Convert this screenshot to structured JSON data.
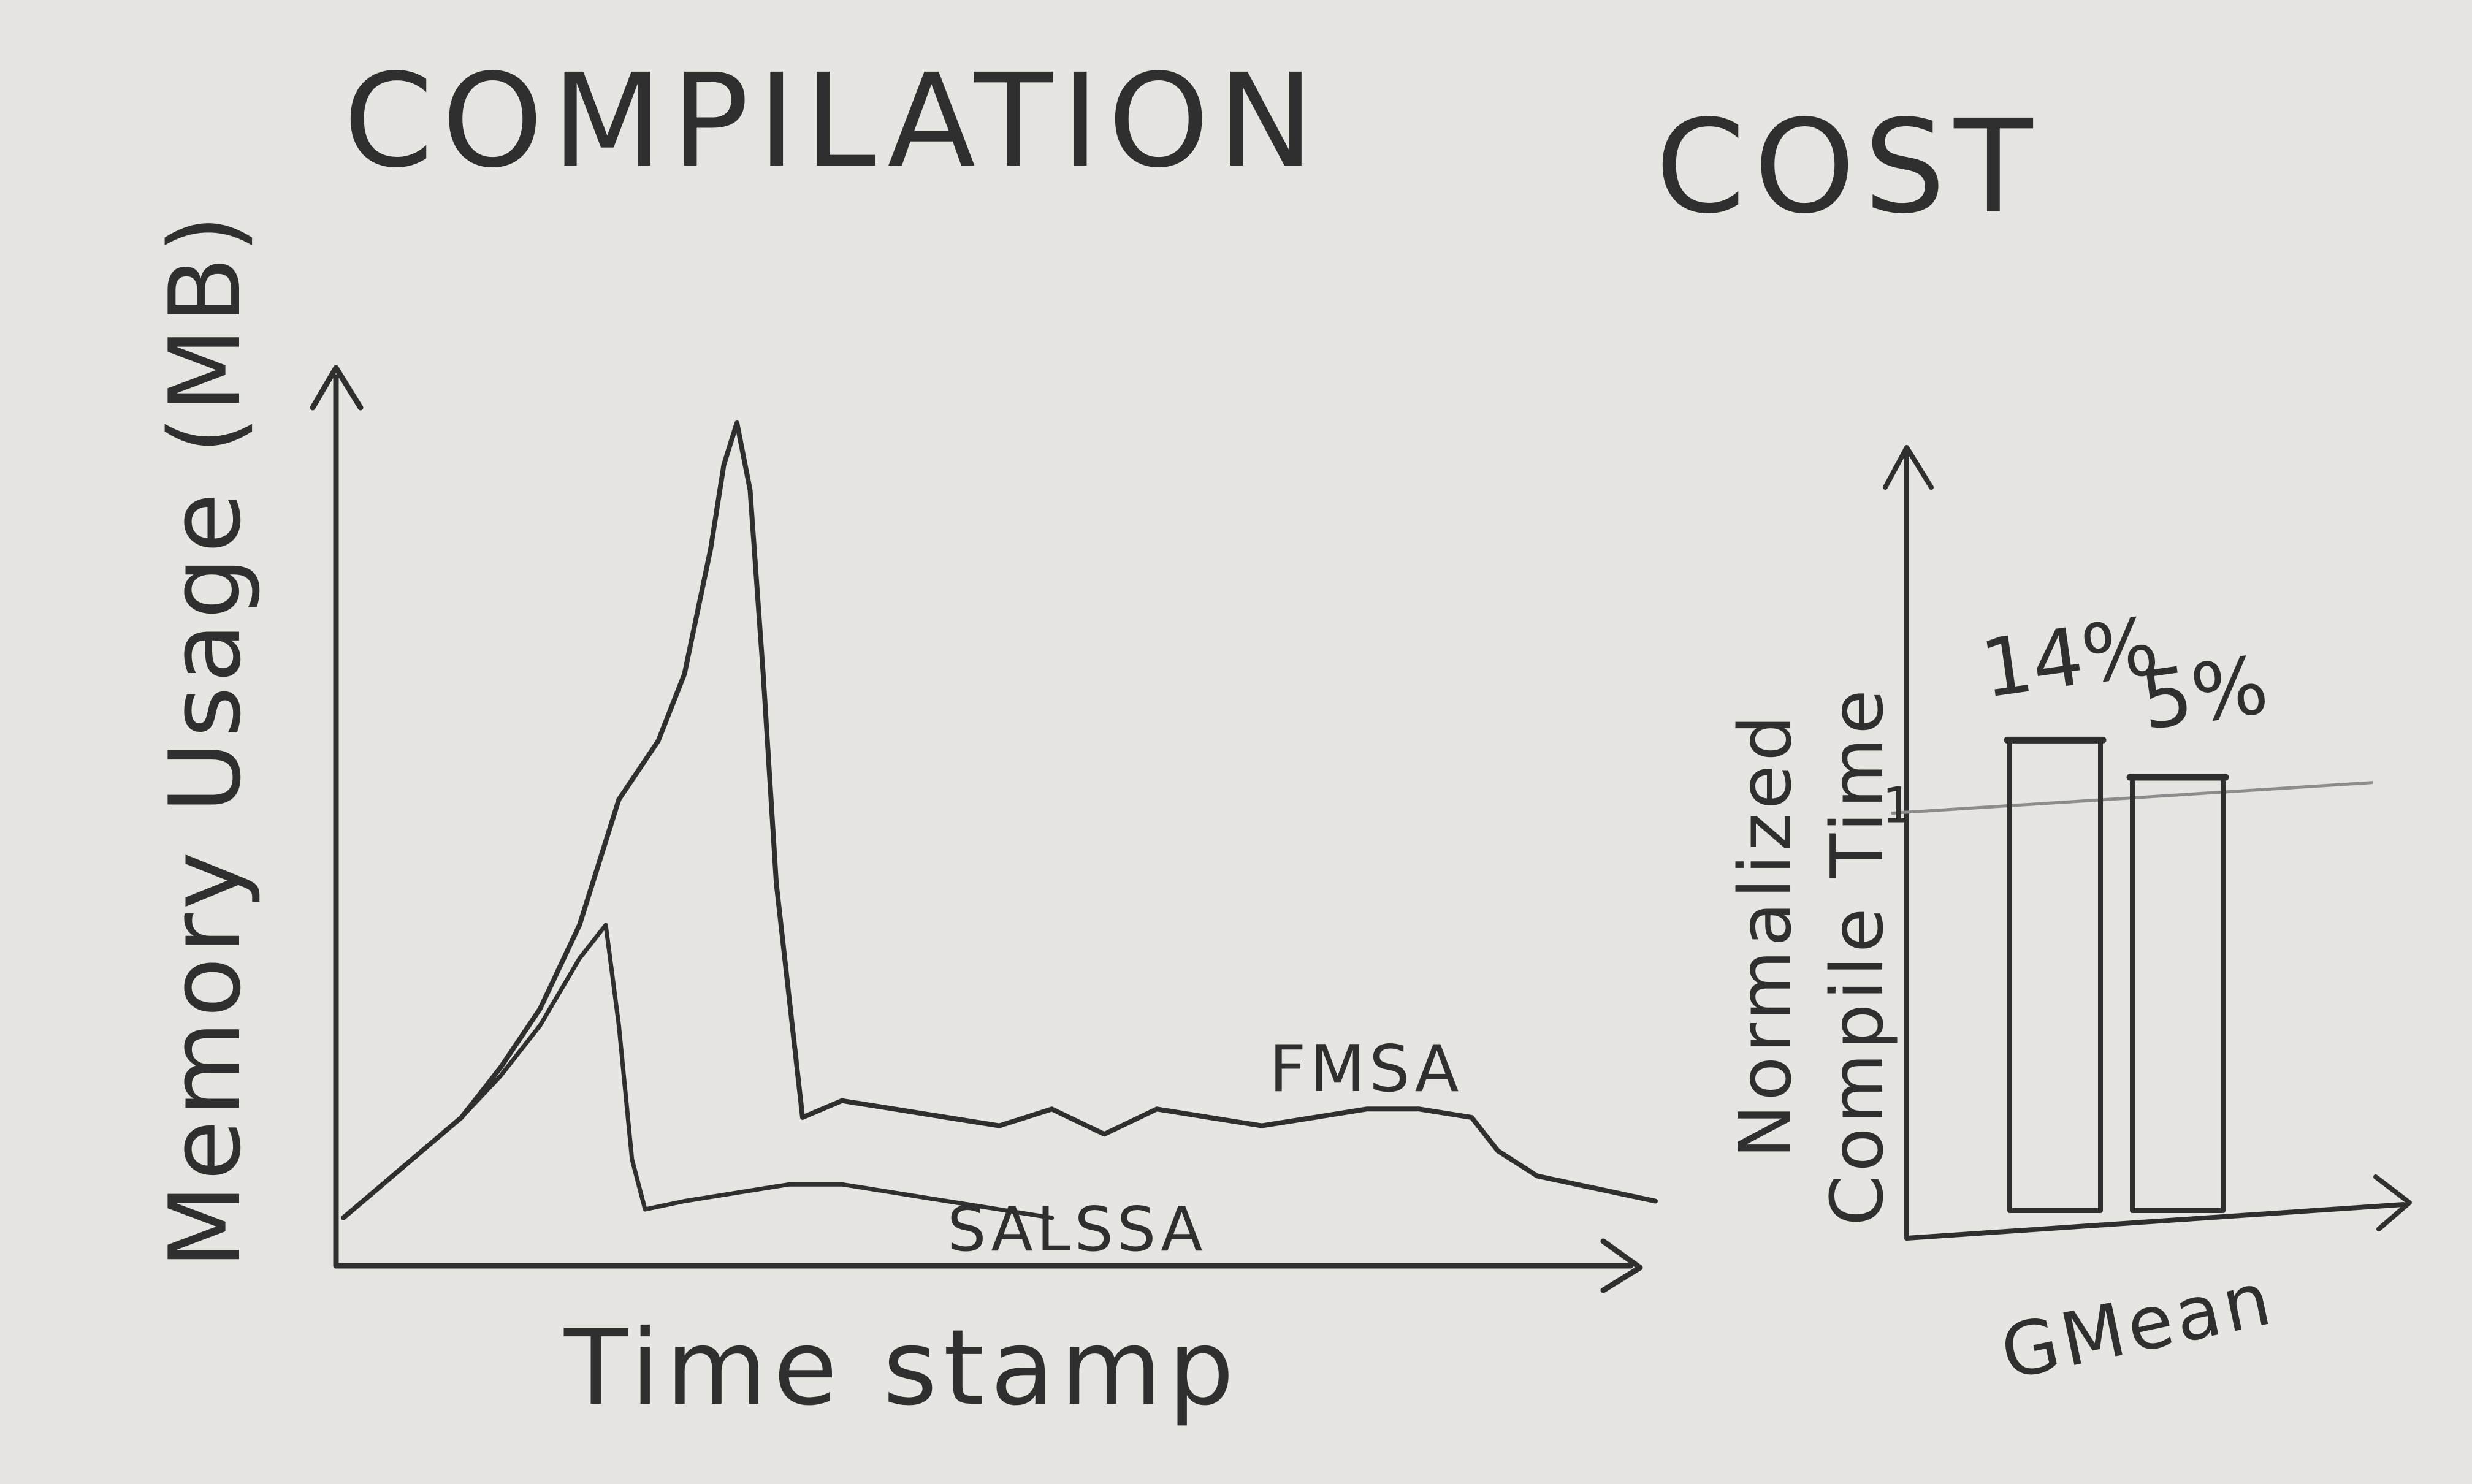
{
  "title_left": "COMPILATION",
  "title_right": "COST",
  "chart_data": [
    {
      "type": "line",
      "title": "",
      "xlabel": "Time stamp",
      "ylabel": "Memory Usage (MB)",
      "series": [
        {
          "name": "FMSA",
          "x": [
            0,
            3,
            6,
            9,
            12,
            15,
            18,
            21,
            24,
            26,
            28,
            29,
            30,
            31,
            32,
            33,
            35,
            38,
            42,
            46,
            50,
            54,
            58,
            62,
            66,
            70,
            74,
            78,
            82,
            86,
            88,
            91,
            94,
            97,
            100
          ],
          "values": [
            5,
            9,
            13,
            17,
            23,
            30,
            40,
            55,
            62,
            70,
            85,
            95,
            100,
            92,
            70,
            45,
            17,
            19,
            18,
            17,
            16,
            18,
            15,
            18,
            17,
            16,
            17,
            18,
            18,
            17,
            13,
            10,
            9,
            8,
            7
          ]
        },
        {
          "name": "SALSSA",
          "x": [
            0,
            3,
            6,
            9,
            12,
            15,
            18,
            20,
            21,
            22,
            23,
            26,
            30,
            34,
            38,
            42,
            46,
            50,
            54
          ],
          "values": [
            5,
            9,
            13,
            17,
            22,
            28,
            36,
            40,
            28,
            12,
            6,
            7,
            8,
            9,
            9,
            8,
            7,
            6,
            5
          ]
        }
      ]
    },
    {
      "type": "bar",
      "title": "",
      "xlabel": "GMean",
      "ylabel": "Normalized Compile Time",
      "reference_line": 1,
      "reference_label": "1",
      "categories": [
        "",
        ""
      ],
      "values": [
        1.14,
        1.05
      ],
      "data_labels": [
        "14%",
        "5%"
      ],
      "ylim": [
        0,
        1.5
      ]
    }
  ]
}
